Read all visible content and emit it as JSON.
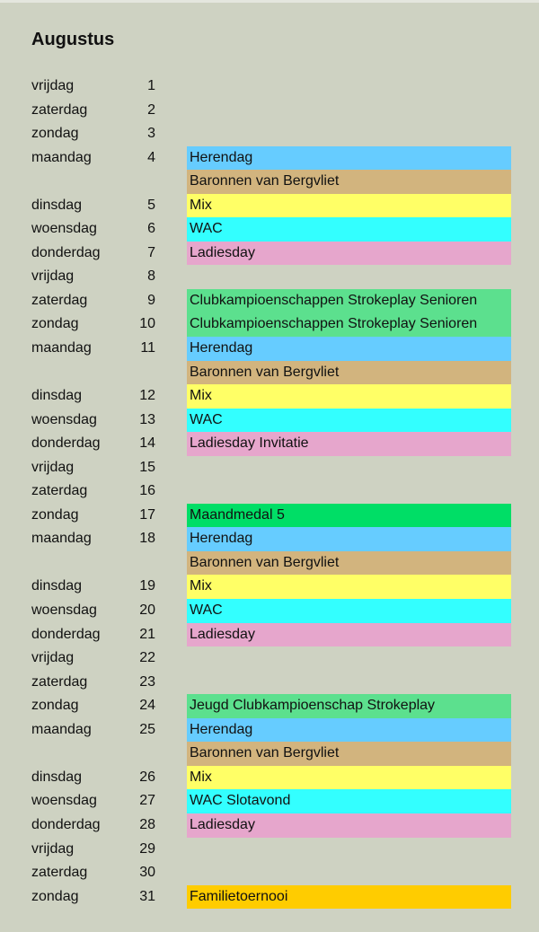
{
  "title": "Augustus",
  "colors": {
    "herendag": "#66CCFF",
    "baronnen": "#D2B47E",
    "mix": "#FFFF66",
    "wac": "#33FFFF",
    "ladies": "#E6A6CC",
    "club": "#5CE08E",
    "medal": "#00DE66",
    "familie": "#FFCC00"
  },
  "rows": [
    {
      "day": "vrijdag",
      "num": "1",
      "event": "",
      "color": ""
    },
    {
      "day": "zaterdag",
      "num": "2",
      "event": "",
      "color": ""
    },
    {
      "day": "zondag",
      "num": "3",
      "event": "",
      "color": ""
    },
    {
      "day": "maandag",
      "num": "4",
      "event": "Herendag",
      "color": "#66CCFF"
    },
    {
      "day": "",
      "num": "",
      "event": "Baronnen van Bergvliet",
      "color": "#D2B47E"
    },
    {
      "day": "dinsdag",
      "num": "5",
      "event": "Mix",
      "color": "#FFFF66"
    },
    {
      "day": "woensdag",
      "num": "6",
      "event": "WAC",
      "color": "#33FFFF"
    },
    {
      "day": "donderdag",
      "num": "7",
      "event": "Ladiesday",
      "color": "#E6A6CC"
    },
    {
      "day": "vrijdag",
      "num": "8",
      "event": "",
      "color": ""
    },
    {
      "day": "zaterdag",
      "num": "9",
      "event": "Clubkampioenschappen Strokeplay Senioren",
      "color": "#5CE08E"
    },
    {
      "day": "zondag",
      "num": "10",
      "event": "Clubkampioenschappen Strokeplay Senioren",
      "color": "#5CE08E"
    },
    {
      "day": "maandag",
      "num": "11",
      "event": "Herendag",
      "color": "#66CCFF"
    },
    {
      "day": "",
      "num": "",
      "event": "Baronnen van Bergvliet",
      "color": "#D2B47E"
    },
    {
      "day": "dinsdag",
      "num": "12",
      "event": "Mix",
      "color": "#FFFF66"
    },
    {
      "day": "woensdag",
      "num": "13",
      "event": "WAC",
      "color": "#33FFFF"
    },
    {
      "day": "donderdag",
      "num": "14",
      "event": "Ladiesday Invitatie",
      "color": "#E6A6CC"
    },
    {
      "day": "vrijdag",
      "num": "15",
      "event": "",
      "color": ""
    },
    {
      "day": "zaterdag",
      "num": "16",
      "event": "",
      "color": ""
    },
    {
      "day": "zondag",
      "num": "17",
      "event": "Maandmedal 5",
      "color": "#00DE66"
    },
    {
      "day": "maandag",
      "num": "18",
      "event": "Herendag",
      "color": "#66CCFF"
    },
    {
      "day": "",
      "num": "",
      "event": "Baronnen van Bergvliet",
      "color": "#D2B47E"
    },
    {
      "day": "dinsdag",
      "num": "19",
      "event": "Mix",
      "color": "#FFFF66"
    },
    {
      "day": "woensdag",
      "num": "20",
      "event": "WAC",
      "color": "#33FFFF"
    },
    {
      "day": "donderdag",
      "num": "21",
      "event": "Ladiesday",
      "color": "#E6A6CC"
    },
    {
      "day": "vrijdag",
      "num": "22",
      "event": "",
      "color": ""
    },
    {
      "day": "zaterdag",
      "num": "23",
      "event": "",
      "color": ""
    },
    {
      "day": "zondag",
      "num": "24",
      "event": "Jeugd Clubkampioenschap Strokeplay",
      "color": "#5CE08E"
    },
    {
      "day": "maandag",
      "num": "25",
      "event": "Herendag",
      "color": "#66CCFF"
    },
    {
      "day": "",
      "num": "",
      "event": "Baronnen van Bergvliet",
      "color": "#D2B47E"
    },
    {
      "day": "dinsdag",
      "num": "26",
      "event": "Mix",
      "color": "#FFFF66"
    },
    {
      "day": "woensdag",
      "num": "27",
      "event": "WAC Slotavond",
      "color": "#33FFFF"
    },
    {
      "day": "donderdag",
      "num": "28",
      "event": "Ladiesday",
      "color": "#E6A6CC"
    },
    {
      "day": "vrijdag",
      "num": "29",
      "event": "",
      "color": ""
    },
    {
      "day": "zaterdag",
      "num": "30",
      "event": "",
      "color": ""
    },
    {
      "day": "zondag",
      "num": "31",
      "event": "Familietoernooi",
      "color": "#FFCC00"
    }
  ]
}
